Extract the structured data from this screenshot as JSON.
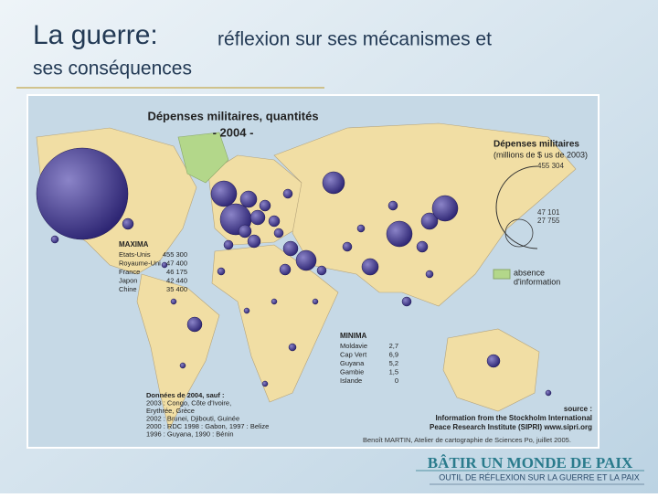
{
  "header": {
    "title_main": "La guerre:",
    "title_rest": "réflexion sur ses mécanismes et",
    "title_line2": "ses conséquences"
  },
  "map": {
    "title": "Dépenses militaires, quantités",
    "subtitle": "- 2004 -",
    "legend": {
      "title": "Dépenses militaires",
      "unit": "(millions de $ us de 2003)",
      "sizes": [
        "455 304",
        "47 101",
        "27 755"
      ],
      "no_data": "absence",
      "no_data_2": "d'information"
    },
    "maxima": {
      "title": "MAXIMA",
      "rows": [
        [
          "Etats-Unis",
          "455 300"
        ],
        [
          "Royaume-Uni",
          "47 400"
        ],
        [
          "France",
          "46 175"
        ],
        [
          "Japon",
          "42 440"
        ],
        [
          "Chine",
          "35 400"
        ]
      ]
    },
    "minima": {
      "title": "MINIMA",
      "rows": [
        [
          "Moldavie",
          "2,7"
        ],
        [
          "Cap Vert",
          "6,9"
        ],
        [
          "Guyana",
          "5,2"
        ],
        [
          "Gambie",
          "1,5"
        ],
        [
          "Islande",
          "0"
        ]
      ]
    },
    "notes": [
      "Données de 2004, sauf :",
      "2003 : Congo, Côte d'Ivoire,",
      "Erythrée, Grèce",
      "2002 : Brunei, Djibouti, Guinée",
      "2000 : RDC 1998 : Gabon, 1997 : Belize",
      "1996 : Guyana, 1990 : Bénin"
    ],
    "source": [
      "source :",
      "Information from the Stockholm International",
      "Peace Research Institute (SIPRI) www.sipri.org"
    ],
    "credit": "Benoît MARTIN, Atelier de cartographie de Sciences Po, juillet 2005."
  },
  "footer": {
    "title": "BÂTIR UN MONDE DE PAIX",
    "subtitle": "OUTIL DE RÉFLEXION SUR LA GUERRE ET LA PAIX"
  }
}
